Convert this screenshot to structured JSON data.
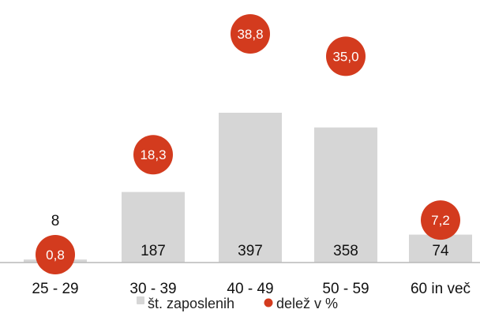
{
  "chart_data": {
    "type": "bar",
    "categories": [
      "25 - 29",
      "30 - 39",
      "40 - 49",
      "50 - 59",
      "60 in več"
    ],
    "series": [
      {
        "name": "št. zaposlenih",
        "values": [
          8,
          187,
          397,
          358,
          74
        ],
        "color": "#d6d6d6"
      },
      {
        "name": "delež v %",
        "values": [
          "0,8",
          "18,3",
          "38,8",
          "35,0",
          "7,2"
        ],
        "color": "#d33b1e"
      }
    ],
    "title": "",
    "xlabel": "",
    "ylabel": "",
    "grid": false,
    "legend_position": "bottom",
    "axis_line_color": "#b9b9b9"
  }
}
